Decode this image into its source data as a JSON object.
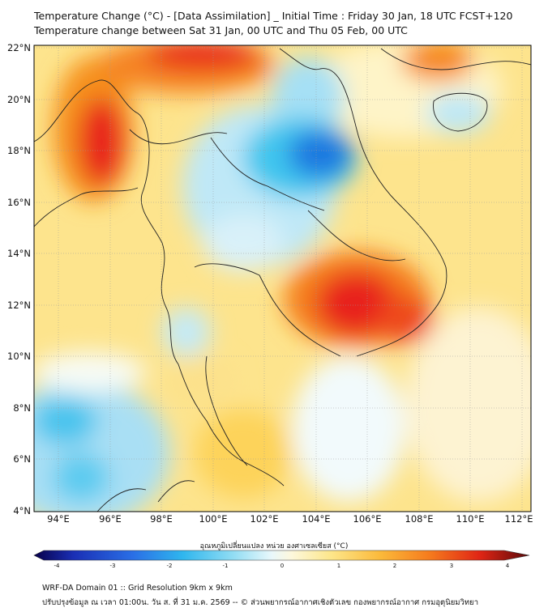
{
  "header": {
    "title_line1": "Temperature Change (°C) - [Data Assimilation] _ Initial Time : Friday 30 Jan, 18 UTC FCST+120",
    "title_line2": "Temperature change between Sat 31 Jan, 00 UTC and Thu 05 Feb, 00 UTC"
  },
  "map": {
    "lat_labels": [
      "22°N",
      "20°N",
      "18°N",
      "16°N",
      "14°N",
      "12°N",
      "10°N",
      "8°N",
      "6°N",
      "4°N"
    ],
    "lon_labels": [
      "94°E",
      "96°E",
      "98°E",
      "100°E",
      "102°E",
      "104°E",
      "106°E",
      "108°E",
      "110°E",
      "112°E"
    ],
    "colors": {
      "warm_strong": "#e8231a",
      "warm": "#f77f1e",
      "warm_light": "#fcd04a",
      "neutral": "#fdf3c6",
      "cool_light": "#bfe8f7",
      "cool": "#3fc6ee",
      "cool_strong": "#1a78e0"
    }
  },
  "colorbar": {
    "label": "อุณหภูมิเปลี่ยนแปลง หน่วย องศาเซลเซียส (°C)",
    "ticks": [
      "-4",
      "-3",
      "-2",
      "-1",
      "0",
      "1",
      "2",
      "3",
      "4"
    ],
    "min": -4,
    "max": 4
  },
  "footer": {
    "line1": "WRF-DA Domain 01 :: Grid Resolution 9km x 9km",
    "line2": "ปรับปรุงข้อมูล ณ เวลา 01:00น. วัน ส. ที่ 31 ม.ค. 2569 -- © ส่วนพยากรณ์อากาศเชิงตัวเลข กองพยากรณ์อากาศ กรมอุตุนิยมวิทยา"
  }
}
